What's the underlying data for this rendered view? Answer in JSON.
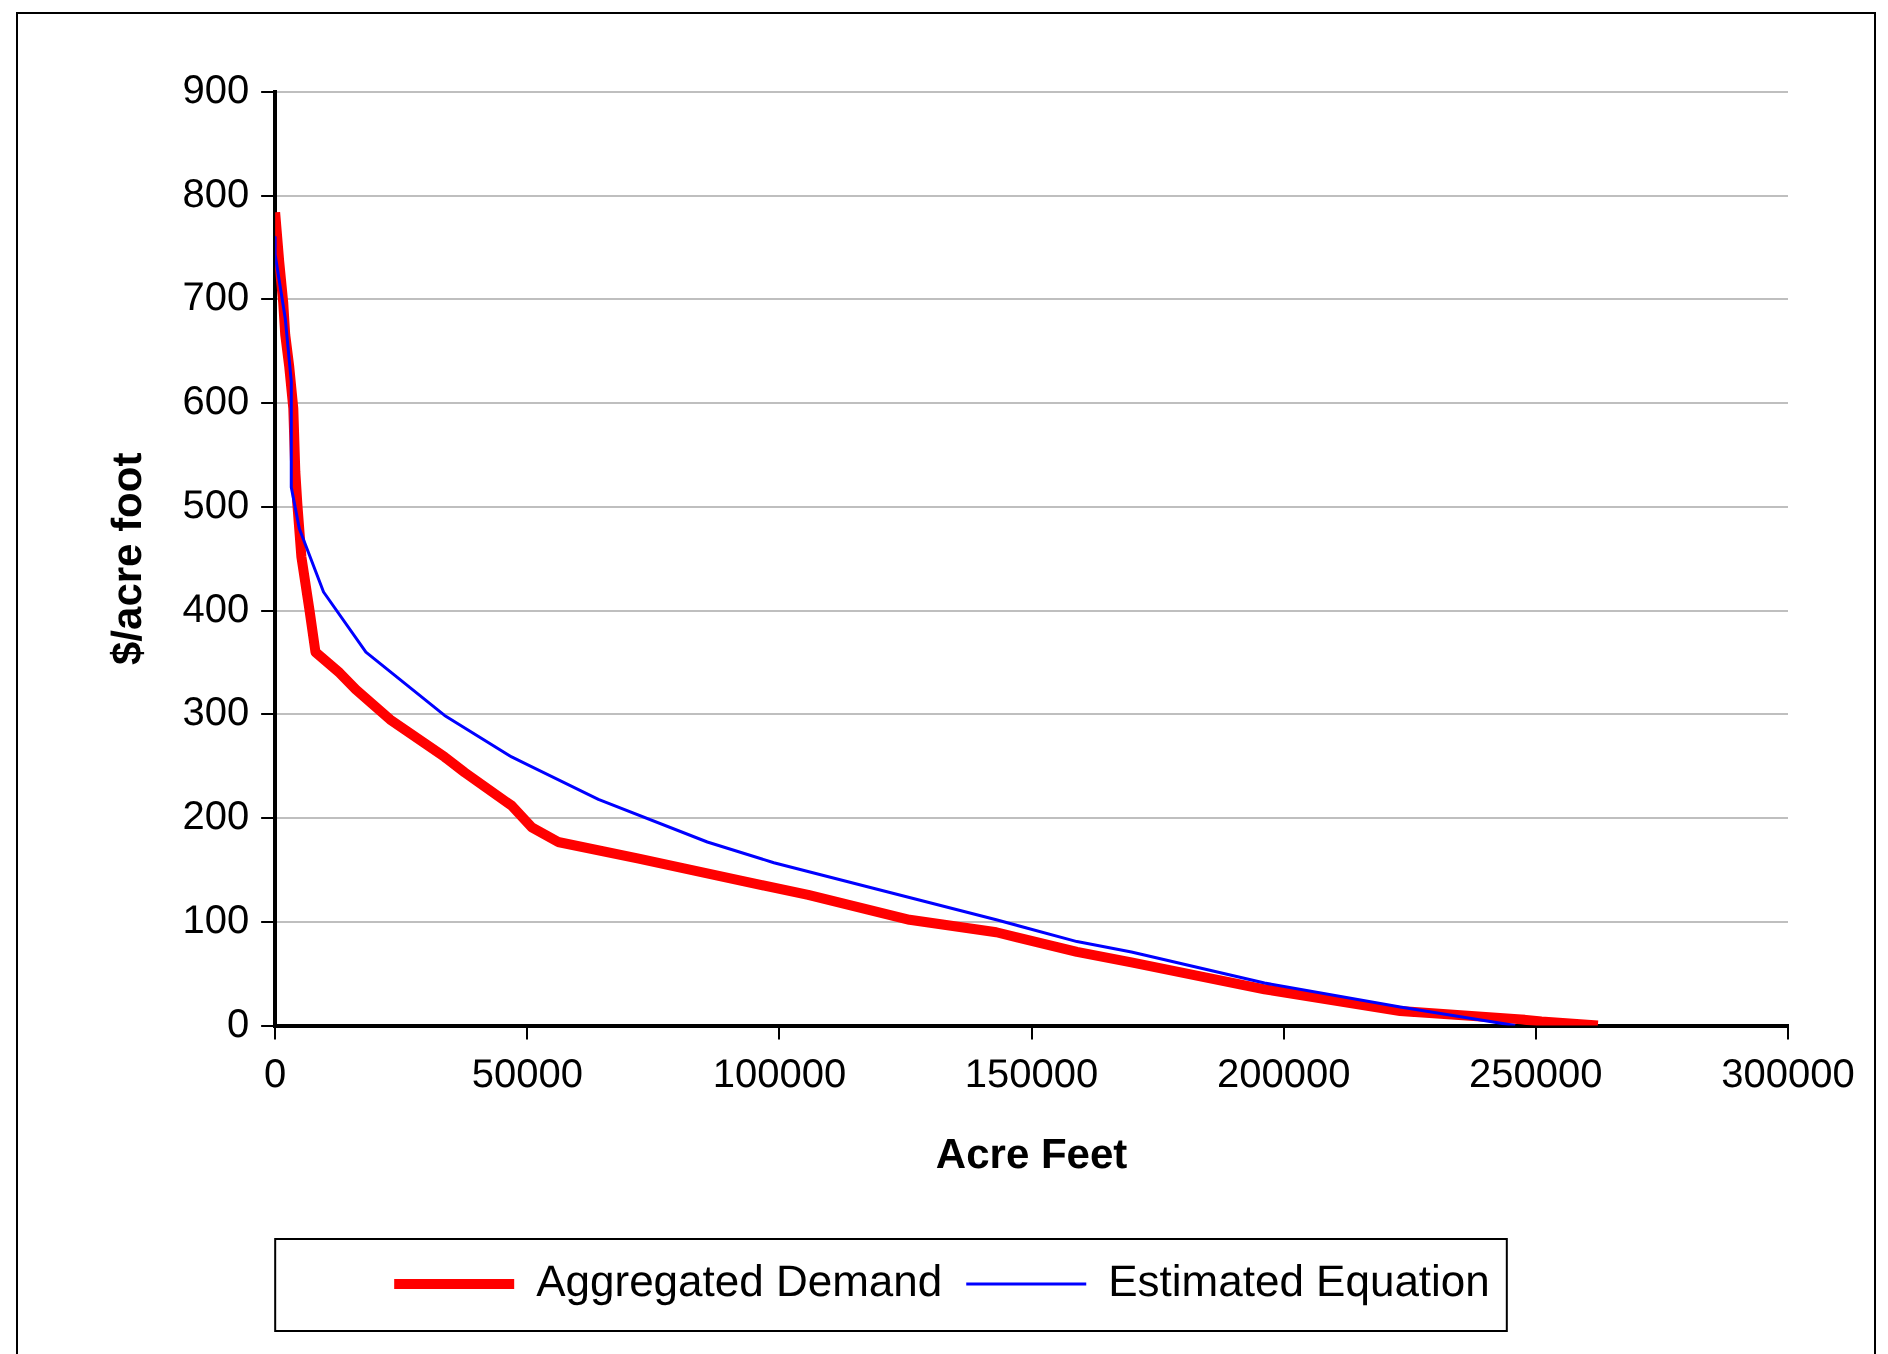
{
  "chart_data": {
    "type": "line",
    "xlabel": "Acre Feet",
    "ylabel": "$/acre foot",
    "xlim": [
      0,
      300000
    ],
    "xticks": [
      0,
      50000,
      100000,
      150000,
      200000,
      250000,
      300000
    ],
    "ylim": [
      0,
      900
    ],
    "yticks": [
      0,
      100,
      200,
      300,
      400,
      500,
      600,
      700,
      800,
      900
    ],
    "grid": "y",
    "legend": "bottom",
    "marker": "none",
    "line_style": "solid",
    "series": [
      {
        "name": "Aggregated Demand",
        "color": "#ff0000",
        "x": [
          0,
          800,
          1600,
          2000,
          2800,
          3600,
          4000,
          4400,
          5200,
          6800,
          8000,
          12800,
          16000,
          22800,
          33600,
          37600,
          46900,
          50900,
          56100,
          72100,
          92100,
          105700,
          125800,
          143000,
          159000,
          169800,
          196200,
          223100,
          247100,
          251100,
          262300
        ],
        "values": [
          784,
          737,
          697,
          666,
          635,
          595,
          534,
          503,
          452,
          401,
          360,
          340,
          324,
          295,
          259,
          244,
          212,
          191,
          177,
          161,
          140,
          126,
          102,
          90,
          71,
          61,
          35,
          14,
          6,
          4,
          0
        ]
      },
      {
        "name": "Estimated Equation",
        "color": "#0000ff",
        "x": [
          0,
          0,
          2000,
          3200,
          3200,
          4800,
          9600,
          18000,
          33600,
          46900,
          64100,
          85700,
          98900,
          119000,
          143000,
          159000,
          169800,
          196200,
          223100,
          245900
        ],
        "values": [
          760,
          743,
          682,
          621,
          519,
          479,
          418,
          360,
          299,
          259,
          218,
          177,
          157,
          132,
          102,
          81,
          71,
          41,
          18,
          0
        ]
      }
    ]
  }
}
